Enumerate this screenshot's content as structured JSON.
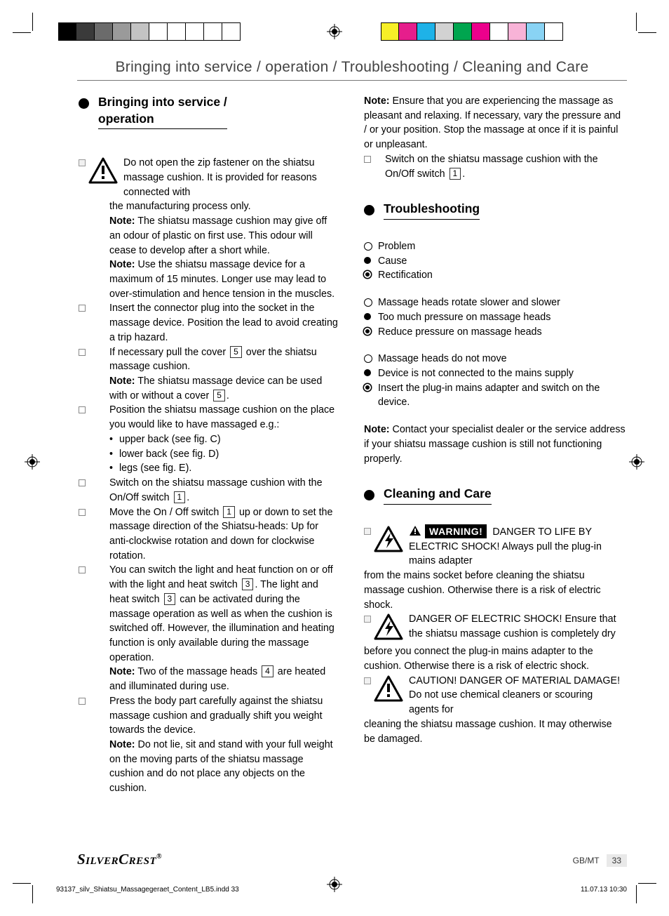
{
  "print": {
    "left_bar_colors": [
      "#000000",
      "#3a3a3a",
      "#6b6b6b",
      "#9a9a9a",
      "#c3c3c3",
      "#ffffff",
      "#ffffff",
      "#ffffff",
      "#ffffff",
      "#ffffff"
    ],
    "right_bar_colors": [
      "#f7ef27",
      "#e61e8c",
      "#1eb2e8",
      "#d2d2d2",
      "#00a54f",
      "#ec008c",
      "#ffffff",
      "#f8b3d7",
      "#89d3f4",
      "#ffffff"
    ],
    "slug_left": "93137_silv_Shiatsu_Massagegeraet_Content_LB5.indd   33",
    "slug_right": "11.07.13   10:30"
  },
  "header": {
    "running": "Bringing into service / operation / Troubleshooting / Cleaning and Care"
  },
  "footer": {
    "brand": "SilverCrest",
    "page_region": "GB/MT",
    "page_num": "33"
  },
  "left": {
    "h_bringing": "Bringing into service /\noperation",
    "p1a": "Do not open the zip fastener on the shiatsu massage cushion. It is provided for reasons connected with",
    "p1b": "the manufacturing process only.",
    "note1_lead": "Note:",
    "note1": " The shiatsu massage cushion may give off an odour of plastic on first use. This odour will cease to develop after a short while.",
    "note2_lead": "Note:",
    "note2": " Use the shiatsu massage device for a maximum of 15 minutes. Longer use may lead to over-stimulation and hence tension in the muscles.",
    "li_plug": "Insert the connector plug into the socket in the massage device. Position the lead to avoid creating a trip hazard.",
    "li_cover_a": "If necessary pull the cover",
    "li_cover_b": "over the shiatsu massage cushion.",
    "note3_lead": "Note:",
    "note3_a": " The shiatsu massage device can be used with or without a cover",
    "note3_dot": ".",
    "li_position": "Position the shiatsu massage cushion on the place you would like to have massaged e.g.:",
    "sub_upper": "upper back (see fig. C)",
    "sub_lower": "lower back (see fig. D)",
    "sub_legs": "legs (see fig. E).",
    "li_switch_a": "Switch on the shiatsu massage cushion with the On/Off switch",
    "li_switch_dot": ".",
    "li_move_a": "Move the On / Off switch",
    "li_move_b": "up or down to set the massage direction of the Shiatsu-heads: Up for anti-clockwise rotation and down for clockwise rotation.",
    "li_light_a": "You can switch the light and heat function on or off with the light and heat switch",
    "li_light_dot": ".",
    "li_light_b": "The light and heat switch",
    "li_light_c": "can be activated during the massage operation as well as when the cushion is switched off. However, the illumination and heating function is only available during the massage operation.",
    "note4_lead": "Note:",
    "note4_a": " Two of the massage heads",
    "note4_b": "are heated and illuminated during use.",
    "li_press": "Press the body part carefully against the shiatsu massage cushion and gradually shift you weight towards the device.",
    "note5_lead": "Note:",
    "note5": " Do not lie, sit and stand with your full weight on the moving parts of the shiatsu massage cushion and do not place any objects on the cushion.",
    "numrefs": {
      "one": "1",
      "three": "3",
      "four": "4",
      "five": "5"
    }
  },
  "right": {
    "note_top_lead": "Note:",
    "note_top": " Ensure that you are experiencing the massage as pleasant and relaxing. If necessary, vary the pressure and / or your position. Stop the massage at once if it is painful or unpleasant.",
    "li_switch_a": "Switch on the shiatsu massage cushion with the On/Off switch",
    "li_switch_dot": ".",
    "h_trouble": "Troubleshooting",
    "legend_problem": "Problem",
    "legend_cause": "Cause",
    "legend_rect": "Rectification",
    "t1_p": "Massage heads rotate slower and slower",
    "t1_c": "Too much pressure on massage heads",
    "t1_r": "Reduce pressure on massage heads",
    "t2_p": "Massage heads do not move",
    "t2_c": "Device is not connected to the mains supply",
    "t2_r": "Insert the plug-in mains adapter and switch on the device.",
    "note_contact_lead": "Note:",
    "note_contact": " Contact your specialist dealer or the service address if your shiatsu massage cushion is still not functioning properly.",
    "h_clean": "Cleaning and Care",
    "warn1_badge": "WARNING!",
    "warn1_head": "DANGER TO LIFE BY ELECTRIC SHOCK!",
    "warn1_a": " Always pull the plug-in mains adapter",
    "warn1_b": "from the mains socket before cleaning the shiatsu massage cushion. Otherwise there is a risk of electric shock.",
    "warn2_head": "DANGER OF ELECTRIC SHOCK!",
    "warn2_a": " Ensure that the shiatsu massage cushion is completely dry",
    "warn2_b": "before you connect the plug-in mains adapter to the cushion. Otherwise there is a risk of electric shock.",
    "warn3_head": "CAUTION! DANGER OF MATERIAL DAMAGE!",
    "warn3_a": " Do not use chemical cleaners or scouring agents for",
    "warn3_b": "cleaning the shiatsu massage cushion. It may otherwise be damaged.",
    "numrefs": {
      "one": "1"
    }
  }
}
